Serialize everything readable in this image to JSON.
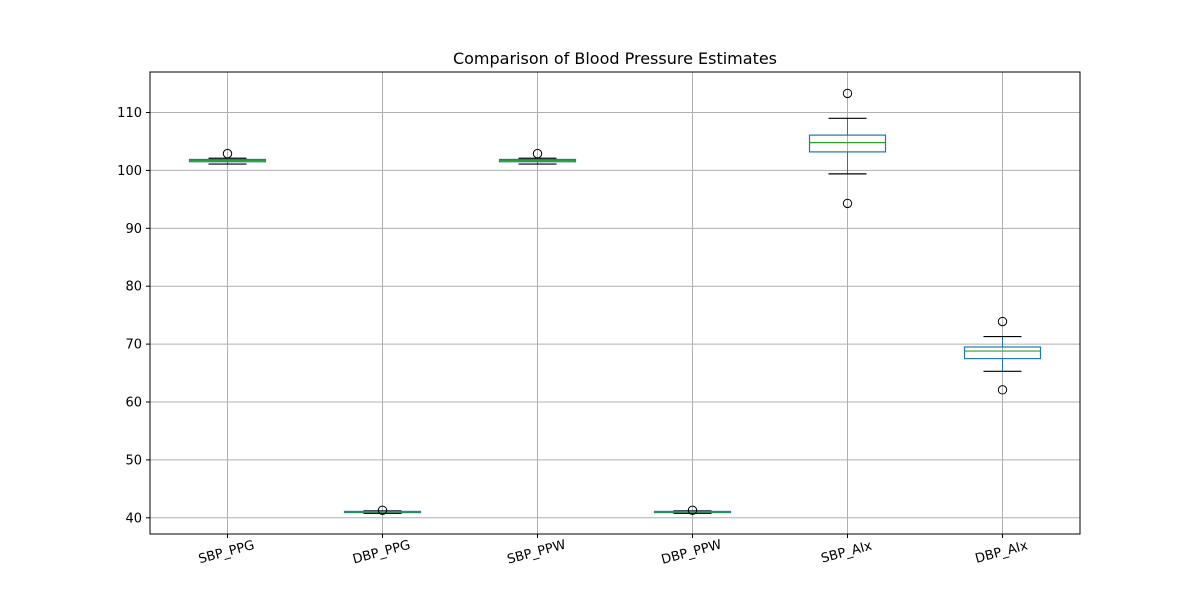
{
  "chart_data": {
    "type": "boxplot",
    "title": "Comparison of Blood Pressure Estimates",
    "xlabel": "",
    "ylabel": "",
    "ylim": [
      37.2,
      117
    ],
    "yticks": [
      40,
      50,
      60,
      70,
      80,
      90,
      100,
      110
    ],
    "grid": true,
    "categories": [
      "SBP_PPG",
      "DBP_PPG",
      "SBP_PPW",
      "DBP_PPW",
      "SBP_AIx",
      "DBP_AIx"
    ],
    "series": [
      {
        "name": "SBP_PPG",
        "whisker_low": 101.1,
        "q1": 101.5,
        "median": 101.7,
        "q3": 101.9,
        "whisker_high": 102.1,
        "outliers": [
          102.9
        ]
      },
      {
        "name": "DBP_PPG",
        "whisker_low": 40.75,
        "q1": 40.9,
        "median": 41.0,
        "q3": 41.1,
        "whisker_high": 41.2,
        "outliers": [
          41.3
        ]
      },
      {
        "name": "SBP_PPW",
        "whisker_low": 101.1,
        "q1": 101.5,
        "median": 101.7,
        "q3": 101.9,
        "whisker_high": 102.1,
        "outliers": [
          102.9
        ]
      },
      {
        "name": "DBP_PPW",
        "whisker_low": 40.75,
        "q1": 40.9,
        "median": 41.0,
        "q3": 41.1,
        "whisker_high": 41.2,
        "outliers": [
          41.3
        ]
      },
      {
        "name": "SBP_AIx",
        "whisker_low": 99.4,
        "q1": 103.2,
        "median": 104.8,
        "q3": 106.1,
        "whisker_high": 109.0,
        "outliers": [
          94.3,
          113.3
        ]
      },
      {
        "name": "DBP_AIx",
        "whisker_low": 65.3,
        "q1": 67.5,
        "median": 68.8,
        "q3": 69.5,
        "whisker_high": 71.3,
        "outliers": [
          62.1,
          73.9
        ]
      }
    ],
    "colors": {
      "box": "#1f77b4",
      "median": "#2ca02c",
      "whisker": "#000000",
      "grid": "#b0b0b0",
      "axis": "#000000"
    }
  }
}
